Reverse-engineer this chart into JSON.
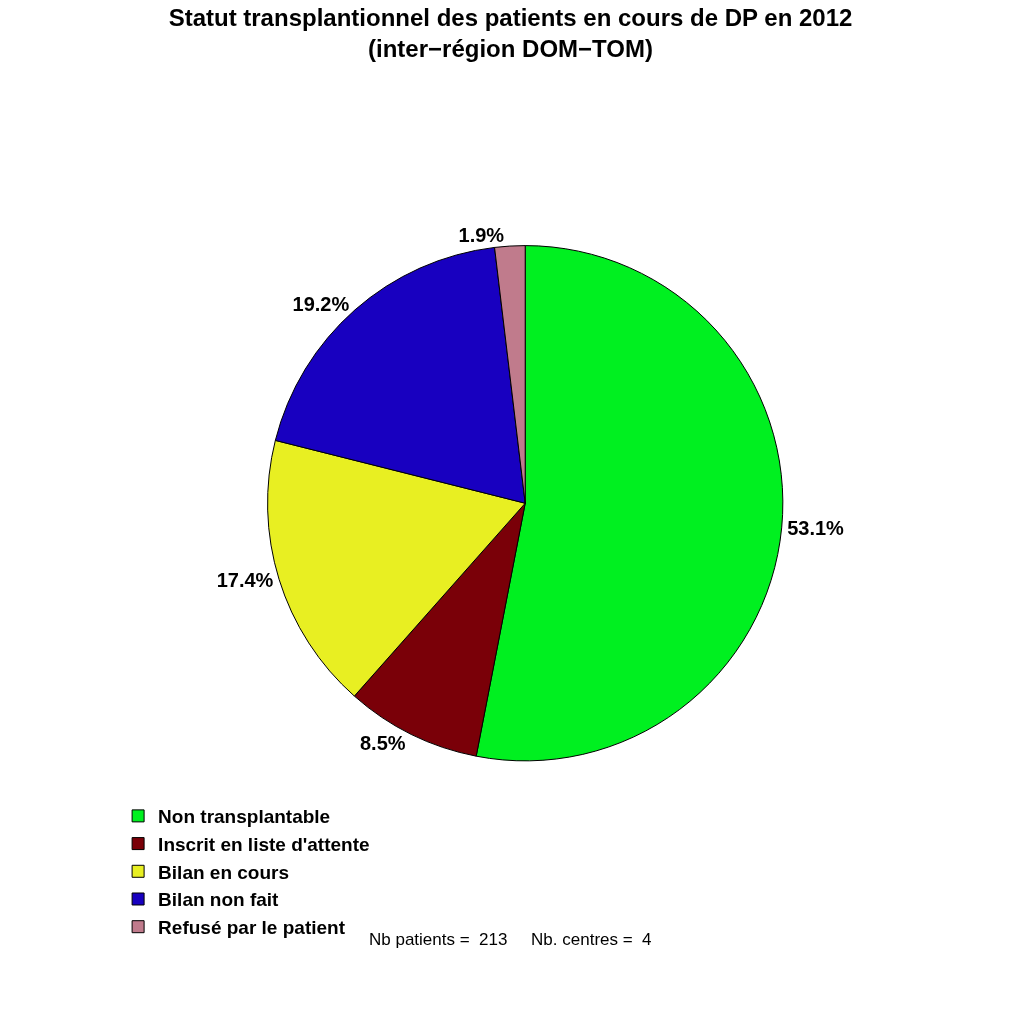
{
  "chart_data": {
    "type": "pie",
    "title": "Statut transplantionnel des patients en cours de DP en 2012\n(inter−région DOM−TOM)",
    "categories": [
      "Non transplantable",
      "Inscrit en liste d'attente",
      "Bilan en cours",
      "Bilan non fait",
      "Refusé par le patient"
    ],
    "values": [
      53.1,
      8.5,
      17.4,
      19.2,
      1.9
    ],
    "value_labels": [
      "53.1%",
      "8.5%",
      "17.4%",
      "19.2%",
      "1.9%"
    ],
    "colors": [
      "#00f020",
      "#7a0008",
      "#e8ef22",
      "#1800c0",
      "#c07b8c"
    ],
    "legend": "bottom left",
    "annotations": [
      "Nb patients =  213     Nb. centres =  4"
    ]
  }
}
